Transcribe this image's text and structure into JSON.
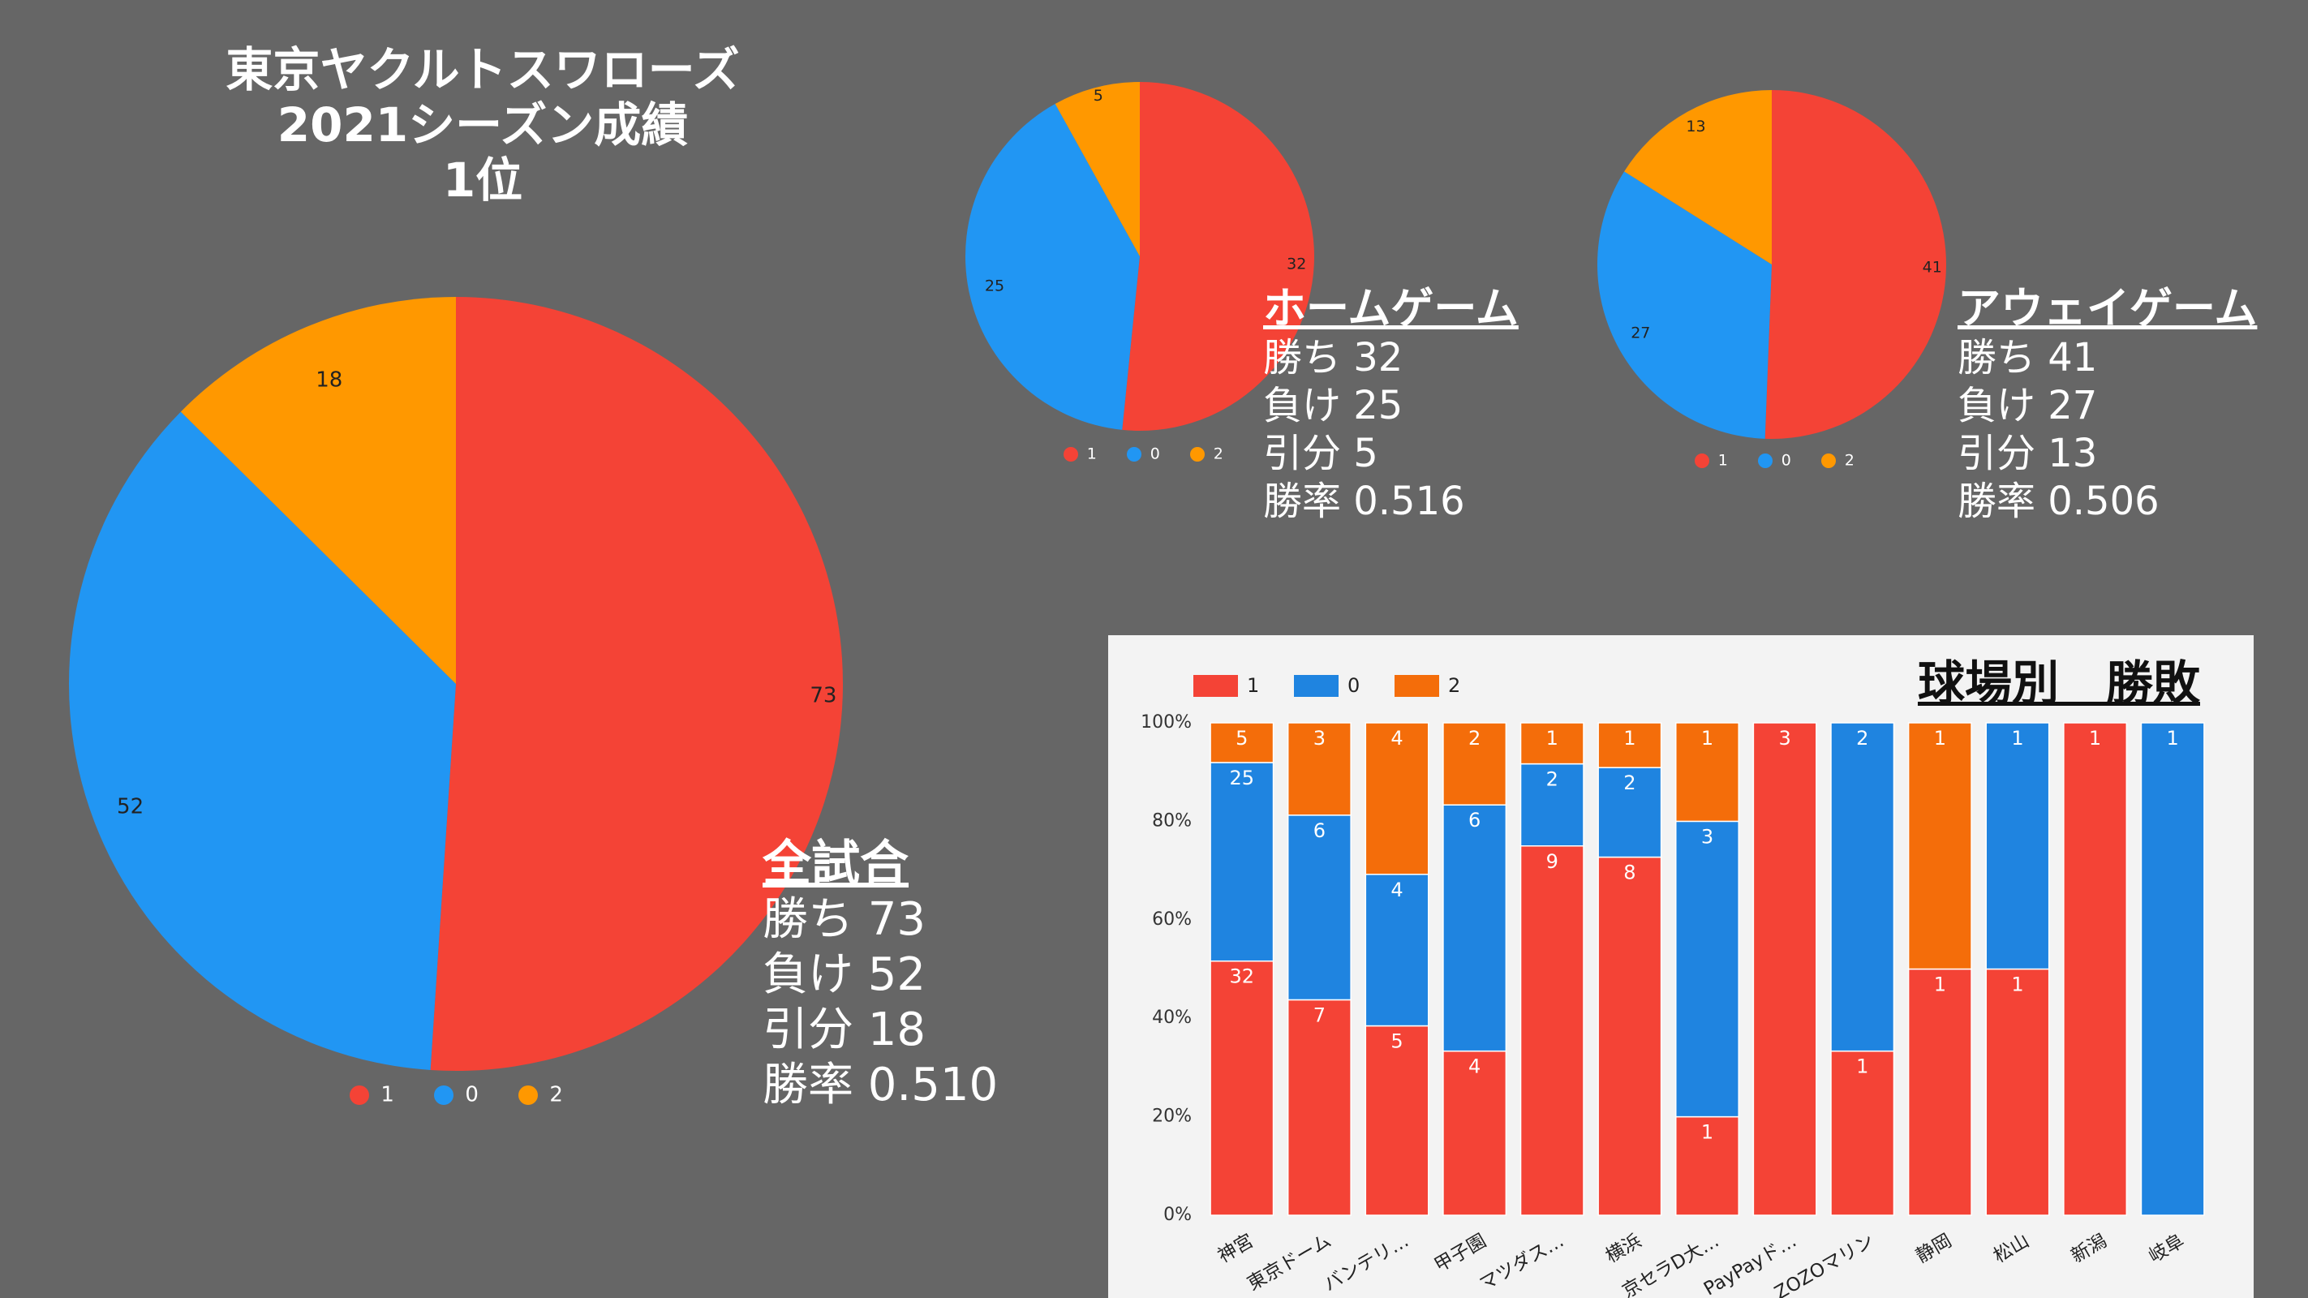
{
  "header": {
    "line1": "東京ヤクルトスワローズ",
    "line2": "2021シーズン成績",
    "line3": "1位"
  },
  "colors": {
    "win": "#f44336",
    "loss": "#2196f3",
    "draw": "#ff9800",
    "draw_bar": "#f46d0a",
    "bar_loss": "#1f84e0"
  },
  "stats": {
    "all": {
      "heading": "全試合",
      "win": "勝ち 73",
      "loss": "負け 52",
      "draw": "引分 18",
      "rate": "勝率 0.510"
    },
    "home": {
      "heading": "ホームゲーム",
      "win": "勝ち 32",
      "loss": "負け 25",
      "draw": "引分 5",
      "rate": "勝率 0.516"
    },
    "away": {
      "heading": "アウェイゲーム",
      "win": "勝ち 41",
      "loss": "負け 27",
      "draw": "引分 13",
      "rate": "勝率 0.506"
    }
  },
  "chart_data": [
    {
      "id": "all",
      "type": "pie",
      "categories": [
        "1",
        "0",
        "2"
      ],
      "values": [
        73,
        52,
        18
      ],
      "legend": "bottom"
    },
    {
      "id": "home",
      "type": "pie",
      "categories": [
        "1",
        "0",
        "2"
      ],
      "values": [
        32,
        25,
        5
      ],
      "legend": "bottom"
    },
    {
      "id": "away",
      "type": "pie",
      "categories": [
        "1",
        "0",
        "2"
      ],
      "values": [
        41,
        27,
        13
      ],
      "legend": "bottom"
    },
    {
      "id": "venues",
      "type": "bar",
      "stacked": "percent",
      "title": "球場別　勝敗",
      "categories": [
        "神宮",
        "東京ドーム",
        "バンテリ…",
        "甲子園",
        "マツダス…",
        "横浜",
        "京セラD大…",
        "PayPayド…",
        "ZOZOマリン",
        "静岡",
        "松山",
        "新潟",
        "岐阜"
      ],
      "series": [
        {
          "name": "1",
          "values": [
            32,
            7,
            5,
            4,
            9,
            8,
            1,
            3,
            1,
            1,
            1,
            1,
            0
          ]
        },
        {
          "name": "0",
          "values": [
            25,
            6,
            4,
            6,
            2,
            2,
            3,
            0,
            2,
            0,
            1,
            0,
            1
          ]
        },
        {
          "name": "2",
          "values": [
            5,
            3,
            4,
            2,
            1,
            1,
            1,
            0,
            0,
            1,
            0,
            0,
            0
          ]
        }
      ],
      "y_ticks": [
        "0%",
        "20%",
        "40%",
        "60%",
        "80%",
        "100%"
      ],
      "ylim": [
        0,
        100
      ],
      "legend": "top-left"
    }
  ]
}
